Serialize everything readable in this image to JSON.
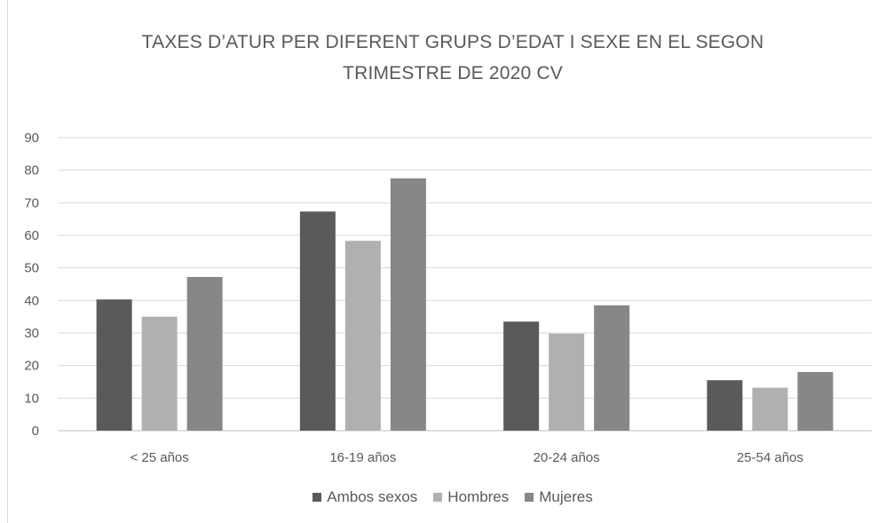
{
  "chart_data": {
    "type": "bar",
    "title_lines": [
      "TAXES D’ATUR PER DIFERENT GRUPS D’EDAT I SEXE EN EL SEGON",
      "TRIMESTRE DE 2020 CV"
    ],
    "categories": [
      "< 25 años",
      "16-19 años",
      "20-24 años",
      "25-54 años"
    ],
    "series": [
      {
        "name": "Ambos sexos",
        "color": "#5a5a5a",
        "values": [
          40.3,
          67.3,
          33.5,
          15.5
        ]
      },
      {
        "name": "Hombres",
        "color": "#b0b0b0",
        "values": [
          35.0,
          58.3,
          29.8,
          13.2
        ]
      },
      {
        "name": "Mujeres",
        "color": "#878787",
        "values": [
          47.2,
          77.5,
          38.5,
          18.0
        ]
      }
    ],
    "ylim": [
      0,
      90
    ],
    "yticks": [
      "0",
      "10",
      "20",
      "30",
      "40",
      "50",
      "60",
      "70",
      "80",
      "90"
    ],
    "grid": true,
    "legend_position": "bottom"
  }
}
